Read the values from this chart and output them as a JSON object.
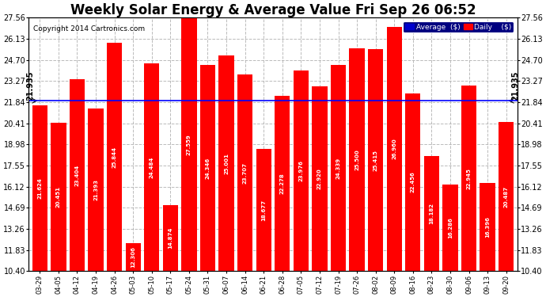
{
  "title": "Weekly Solar Energy & Average Value Fri Sep 26 06:52",
  "copyright": "Copyright 2014 Cartronics.com",
  "categories": [
    "03-29",
    "04-05",
    "04-12",
    "04-19",
    "04-26",
    "05-03",
    "05-10",
    "05-17",
    "05-24",
    "05-31",
    "06-07",
    "06-14",
    "06-21",
    "06-28",
    "07-05",
    "07-12",
    "07-19",
    "07-26",
    "08-02",
    "08-09",
    "08-16",
    "08-23",
    "08-30",
    "09-06",
    "09-13",
    "09-20"
  ],
  "values": [
    21.624,
    20.451,
    23.404,
    21.393,
    25.844,
    12.306,
    24.484,
    14.874,
    27.559,
    24.346,
    25.001,
    23.707,
    18.677,
    22.278,
    23.976,
    22.92,
    24.339,
    25.5,
    25.415,
    26.96,
    22.456,
    18.182,
    16.286,
    22.945,
    16.396,
    20.487
  ],
  "average": 21.935,
  "bar_color": "#ff0000",
  "average_line_color": "#0000ff",
  "background_color": "#ffffff",
  "yticks": [
    10.4,
    11.83,
    13.26,
    14.69,
    16.12,
    17.55,
    18.98,
    20.41,
    21.84,
    23.27,
    24.7,
    26.13,
    27.56
  ],
  "ylim_min": 10.4,
  "ylim_max": 27.56,
  "title_fontsize": 12,
  "legend_avg_color": "#0000cd",
  "legend_daily_color": "#ff0000"
}
